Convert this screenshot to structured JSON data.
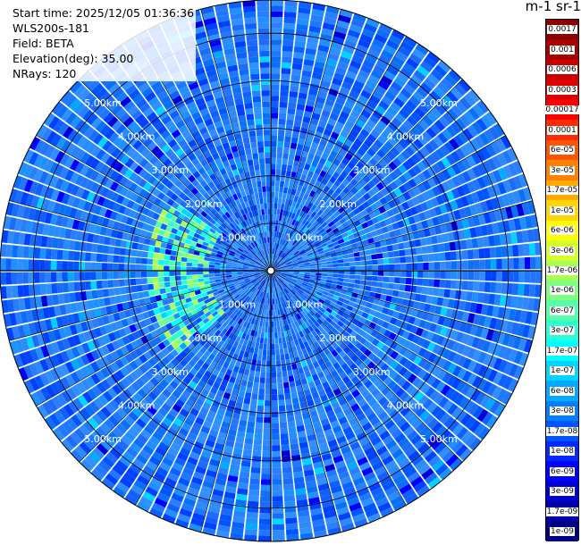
{
  "info": {
    "start_time": "Start time: 2025/12/05 01:36:36",
    "device": "WLS200s-181",
    "field": "Field: BETA",
    "elevation": "Elevation(deg): 35.00",
    "nrays": "NRays: 120"
  },
  "colorbar": {
    "units_title": "m-1 sr-1",
    "labels": [
      "0.0017",
      "0.001",
      "0.0006",
      "0.0003",
      "0.00017",
      "0.0001",
      "6e-05",
      "3e-05",
      "1.7e-05",
      "1e-05",
      "6e-06",
      "3e-06",
      "1.7e-06",
      "1e-06",
      "6e-07",
      "3e-07",
      "1.7e-07",
      "1e-07",
      "6e-08",
      "3e-08",
      "1.7e-08",
      "1e-08",
      "6e-09",
      "3e-09",
      "1.7e-09",
      "1e-09"
    ],
    "colors": [
      "#8b0000",
      "#a80000",
      "#c80000",
      "#e00000",
      "#ff0000",
      "#ff2a00",
      "#ff5500",
      "#ff7f00",
      "#ffaa00",
      "#ffd400",
      "#ffff00",
      "#d4ff2a",
      "#aaff55",
      "#7fff7f",
      "#55ffaa",
      "#2affd4",
      "#00ffff",
      "#00d4ff",
      "#00aaff",
      "#007fff",
      "#0055ff",
      "#002aff",
      "#0000ff",
      "#0000d4",
      "#0000aa",
      "#00007f"
    ]
  },
  "range_labels": [
    "1.00km",
    "2.00km",
    "3.00km",
    "4.00km",
    "5.00km"
  ],
  "chart_data": {
    "type": "ppi",
    "rays": 120,
    "elevation_deg": 35.0,
    "range_rings_km": [
      1,
      2,
      3,
      4,
      5
    ],
    "max_range_km": 5.7
  }
}
